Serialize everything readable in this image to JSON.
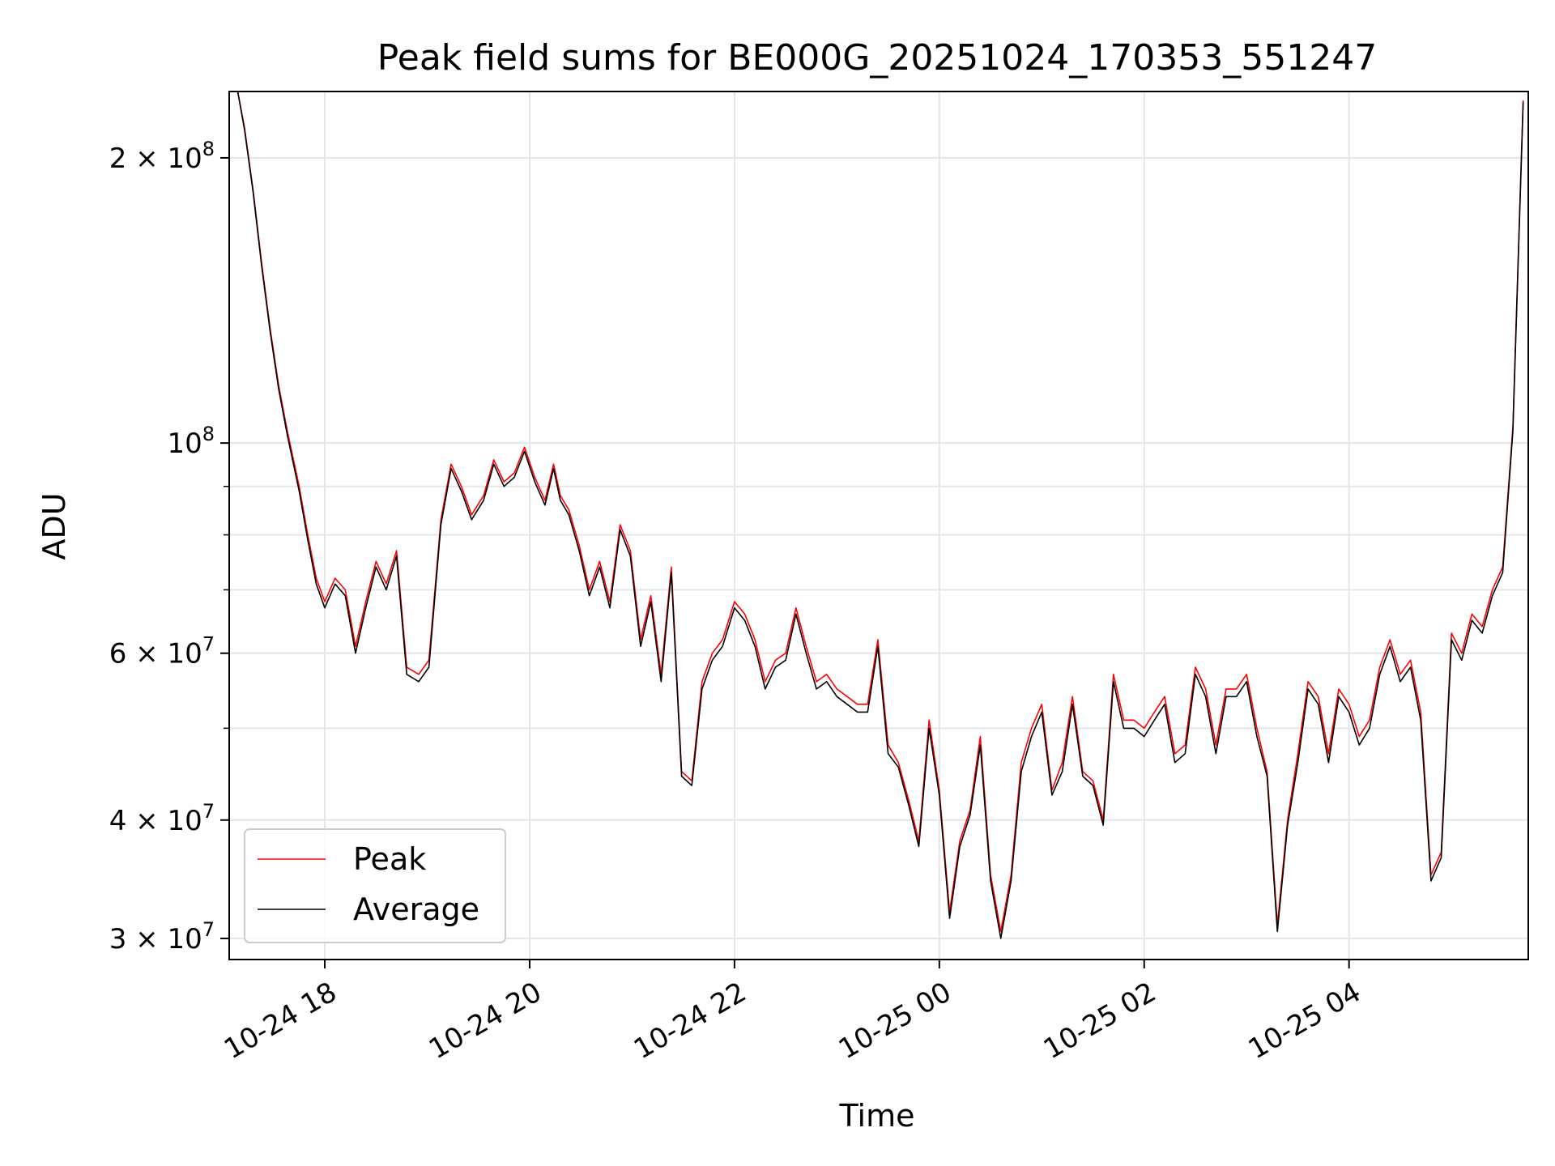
{
  "chart_data": {
    "type": "line",
    "title": "Peak field sums for BE000G_20251024_170353_551247",
    "xlabel": "Time",
    "ylabel": "ADU",
    "yscale": "log",
    "xlim": [
      "2025-10-24 17:04",
      "2025-10-25 05:45"
    ],
    "ylim": [
      28500000,
      235000000
    ],
    "grid": true,
    "legend_position": "lower-left",
    "x_ticks": [
      {
        "value": "2025-10-24 18:00",
        "label": "10-24 18"
      },
      {
        "value": "2025-10-24 20:00",
        "label": "10-24 20"
      },
      {
        "value": "2025-10-24 22:00",
        "label": "10-24 22"
      },
      {
        "value": "2025-10-25 00:00",
        "label": "10-25 00"
      },
      {
        "value": "2025-10-25 02:00",
        "label": "10-25 02"
      },
      {
        "value": "2025-10-25 04:00",
        "label": "10-25 04"
      }
    ],
    "y_ticks_major": [
      {
        "value": 30000000,
        "mant": "3",
        "base": " × 10",
        "exp": "7"
      },
      {
        "value": 40000000,
        "mant": "4",
        "base": " × 10",
        "exp": "7"
      },
      {
        "value": 60000000,
        "mant": "6",
        "base": " × 10",
        "exp": "7"
      },
      {
        "value": 100000000,
        "mant": "",
        "base": "10",
        "exp": "8"
      },
      {
        "value": 200000000,
        "mant": "2",
        "base": " × 10",
        "exp": "8"
      }
    ],
    "y_ticks_minor": [
      50000000,
      70000000,
      80000000,
      90000000
    ],
    "x": [
      "2025-10-24 17:09",
      "2025-10-24 17:13",
      "2025-10-24 17:18",
      "2025-10-24 17:23",
      "2025-10-24 17:28",
      "2025-10-24 17:33",
      "2025-10-24 17:38",
      "2025-10-24 17:45",
      "2025-10-24 17:50",
      "2025-10-24 17:55",
      "2025-10-24 18:00",
      "2025-10-24 18:06",
      "2025-10-24 18:12",
      "2025-10-24 18:18",
      "2025-10-24 18:24",
      "2025-10-24 18:30",
      "2025-10-24 18:36",
      "2025-10-24 18:42",
      "2025-10-24 18:48",
      "2025-10-24 18:55",
      "2025-10-24 19:01",
      "2025-10-24 19:08",
      "2025-10-24 19:14",
      "2025-10-24 19:20",
      "2025-10-24 19:26",
      "2025-10-24 19:33",
      "2025-10-24 19:39",
      "2025-10-24 19:45",
      "2025-10-24 19:51",
      "2025-10-24 19:57",
      "2025-10-24 20:03",
      "2025-10-24 20:09",
      "2025-10-24 20:14",
      "2025-10-24 20:18",
      "2025-10-24 20:23",
      "2025-10-24 20:29",
      "2025-10-24 20:35",
      "2025-10-24 20:41",
      "2025-10-24 20:47",
      "2025-10-24 20:53",
      "2025-10-24 20:59",
      "2025-10-24 21:05",
      "2025-10-24 21:11",
      "2025-10-24 21:17",
      "2025-10-24 21:23",
      "2025-10-24 21:29",
      "2025-10-24 21:35",
      "2025-10-24 21:41",
      "2025-10-24 21:47",
      "2025-10-24 21:53",
      "2025-10-24 22:00",
      "2025-10-24 22:06",
      "2025-10-24 22:12",
      "2025-10-24 22:18",
      "2025-10-24 22:24",
      "2025-10-24 22:30",
      "2025-10-24 22:36",
      "2025-10-24 22:42",
      "2025-10-24 22:48",
      "2025-10-24 22:54",
      "2025-10-24 23:00",
      "2025-10-24 23:06",
      "2025-10-24 23:12",
      "2025-10-24 23:18",
      "2025-10-24 23:24",
      "2025-10-24 23:30",
      "2025-10-24 23:36",
      "2025-10-24 23:42",
      "2025-10-24 23:48",
      "2025-10-24 23:54",
      "2025-10-25 00:00",
      "2025-10-25 00:06",
      "2025-10-25 00:12",
      "2025-10-25 00:18",
      "2025-10-25 00:24",
      "2025-10-25 00:30",
      "2025-10-25 00:36",
      "2025-10-25 00:42",
      "2025-10-25 00:48",
      "2025-10-25 00:54",
      "2025-10-25 01:00",
      "2025-10-25 01:06",
      "2025-10-25 01:12",
      "2025-10-25 01:18",
      "2025-10-25 01:24",
      "2025-10-25 01:30",
      "2025-10-25 01:36",
      "2025-10-25 01:42",
      "2025-10-25 01:48",
      "2025-10-25 01:54",
      "2025-10-25 02:00",
      "2025-10-25 02:06",
      "2025-10-25 02:12",
      "2025-10-25 02:18",
      "2025-10-25 02:24",
      "2025-10-25 02:30",
      "2025-10-25 02:36",
      "2025-10-25 02:42",
      "2025-10-25 02:48",
      "2025-10-25 02:54",
      "2025-10-25 03:00",
      "2025-10-25 03:06",
      "2025-10-25 03:12",
      "2025-10-25 03:18",
      "2025-10-25 03:24",
      "2025-10-25 03:30",
      "2025-10-25 03:36",
      "2025-10-25 03:42",
      "2025-10-25 03:48",
      "2025-10-25 03:54",
      "2025-10-25 04:00",
      "2025-10-25 04:06",
      "2025-10-25 04:12",
      "2025-10-25 04:18",
      "2025-10-25 04:24",
      "2025-10-25 04:30",
      "2025-10-25 04:36",
      "2025-10-25 04:42",
      "2025-10-25 04:48",
      "2025-10-25 04:54",
      "2025-10-25 05:00",
      "2025-10-25 05:06",
      "2025-10-25 05:12",
      "2025-10-25 05:18",
      "2025-10-25 05:24",
      "2025-10-25 05:30",
      "2025-10-25 05:36",
      "2025-10-25 05:42"
    ],
    "series": [
      {
        "name": "Peak",
        "color": "#ff0000",
        "values": [
          235000000,
          215000000,
          185000000,
          155000000,
          132000000,
          115000000,
          103000000,
          90000000,
          80000000,
          72000000,
          68000000,
          72000000,
          70000000,
          61000000,
          68000000,
          75000000,
          71000000,
          77000000,
          58000000,
          57000000,
          59000000,
          83000000,
          95000000,
          90000000,
          84000000,
          88000000,
          96000000,
          91000000,
          93000000,
          99000000,
          92000000,
          87000000,
          95000000,
          88000000,
          85000000,
          78000000,
          70000000,
          75000000,
          68000000,
          82000000,
          77000000,
          62000000,
          69000000,
          57000000,
          74000000,
          45000000,
          44000000,
          56000000,
          60000000,
          62000000,
          68000000,
          66000000,
          62000000,
          56000000,
          59000000,
          60000000,
          67000000,
          61000000,
          56000000,
          57000000,
          55000000,
          54000000,
          53000000,
          53000000,
          62000000,
          48000000,
          46000000,
          42000000,
          38000000,
          51000000,
          43000000,
          32000000,
          38000000,
          41000000,
          49000000,
          35000000,
          30500000,
          35000000,
          46000000,
          50000000,
          53000000,
          43000000,
          46000000,
          54000000,
          45000000,
          44000000,
          40000000,
          57000000,
          51000000,
          51000000,
          50000000,
          52000000,
          54000000,
          47000000,
          48000000,
          58000000,
          55000000,
          48000000,
          55000000,
          55000000,
          57000000,
          50000000,
          45000000,
          31000000,
          40000000,
          47000000,
          56000000,
          54000000,
          47000000,
          55000000,
          53000000,
          49000000,
          51000000,
          58000000,
          62000000,
          57000000,
          59000000,
          52000000,
          35000000,
          37000000,
          63000000,
          60000000,
          66000000,
          64000000,
          70000000,
          74000000,
          104000000,
          230000000
        ]
      },
      {
        "name": "Average",
        "color": "#000000",
        "values": [
          235000000,
          214000000,
          184000000,
          154000000,
          131000000,
          114000000,
          102000000,
          89000000,
          79000000,
          71000000,
          67000000,
          71000000,
          69000000,
          60000000,
          67000000,
          74000000,
          70000000,
          76000000,
          57000000,
          56000000,
          58000000,
          82000000,
          94000000,
          89000000,
          83000000,
          87000000,
          95000000,
          90000000,
          92000000,
          98000000,
          91000000,
          86000000,
          94000000,
          87000000,
          84000000,
          77000000,
          69000000,
          74000000,
          67000000,
          81000000,
          76000000,
          61000000,
          68000000,
          56000000,
          73000000,
          44500000,
          43500000,
          55000000,
          59000000,
          61000000,
          67000000,
          65000000,
          61000000,
          55000000,
          58000000,
          59000000,
          66000000,
          60000000,
          55000000,
          56000000,
          54000000,
          53000000,
          52000000,
          52000000,
          61000000,
          47000000,
          45500000,
          41500000,
          37500000,
          50000000,
          42500000,
          31500000,
          37500000,
          40500000,
          48000000,
          34500000,
          30000000,
          34500000,
          45000000,
          49000000,
          52000000,
          42500000,
          45000000,
          53000000,
          44500000,
          43500000,
          39500000,
          56000000,
          50000000,
          50000000,
          49000000,
          51000000,
          53000000,
          46000000,
          47000000,
          57000000,
          54000000,
          47000000,
          54000000,
          54000000,
          56000000,
          49000000,
          44500000,
          30500000,
          39500000,
          46000000,
          55000000,
          53000000,
          46000000,
          54000000,
          52000000,
          48000000,
          50000000,
          57000000,
          61000000,
          56000000,
          58000000,
          51000000,
          34500000,
          36500000,
          62000000,
          59000000,
          65000000,
          63000000,
          69000000,
          73000000,
          103000000,
          229000000
        ]
      }
    ]
  }
}
